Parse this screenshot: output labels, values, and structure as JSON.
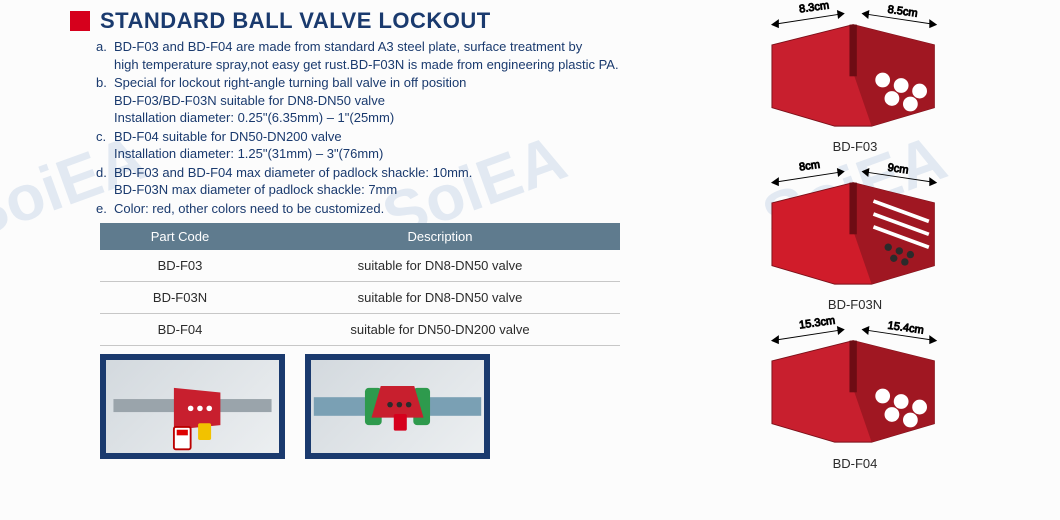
{
  "watermark": "SoiEA",
  "title": "STANDARD BALL VALVE LOCKOUT",
  "bullets": [
    {
      "letter": "a",
      "text": "BD-F03 and BD-F04 are made from standard A3 steel plate, surface treatment by\nhigh temperature spray,not easy get rust.BD-F03N is made from engineering plastic PA."
    },
    {
      "letter": "b",
      "text": "Special for lockout right-angle turning ball valve in off position\nBD-F03/BD-F03N suitable for DN8-DN50 valve\nInstallation diameter: 0.25\"(6.35mm) – 1\"(25mm)"
    },
    {
      "letter": "c",
      "text": "BD-F04 suitable for DN50-DN200 valve\nInstallation diameter: 1.25\"(31mm) – 3\"(76mm)"
    },
    {
      "letter": "d",
      "text": "BD-F03 and BD-F04 max diameter of padlock shackle: 10mm.\nBD-F03N max diameter of padlock shackle: 7mm"
    },
    {
      "letter": "e",
      "text": "Color: red, other colors need to be customized."
    }
  ],
  "table": {
    "columns": [
      "Part Code",
      "Description"
    ],
    "rows": [
      [
        "BD-F03",
        "suitable for DN8-DN50 valve"
      ],
      [
        "BD-F03N",
        "suitable for DN8-DN50 valve"
      ],
      [
        "BD-F04",
        "suitable for DN50-DN200 valve"
      ]
    ],
    "header_bg": "#5f7b8e",
    "header_color": "#ffffff",
    "row_border": "#c7c7c7"
  },
  "figures": [
    {
      "label": "BD-F03",
      "dim_left": "8.3cm",
      "dim_right": "8.5cm",
      "color": "#c81f2e"
    },
    {
      "label": "BD-F03N",
      "dim_left": "8cm",
      "dim_right": "9cm",
      "color": "#d01c2a"
    },
    {
      "label": "BD-F04",
      "dim_left": "15.3cm",
      "dim_right": "15.4cm",
      "color": "#c81f2e"
    }
  ],
  "photos": [
    {
      "name": "application-photo-1"
    },
    {
      "name": "application-photo-2"
    }
  ],
  "colors": {
    "brand_text": "#1a3a6e",
    "accent_red": "#d6001c",
    "device_red": "#c81f2e",
    "table_header": "#5f7b8e",
    "background": "#fcfcfc"
  },
  "typography": {
    "title_size_pt": 22,
    "body_size_pt": 13,
    "font_family": "Arial"
  }
}
